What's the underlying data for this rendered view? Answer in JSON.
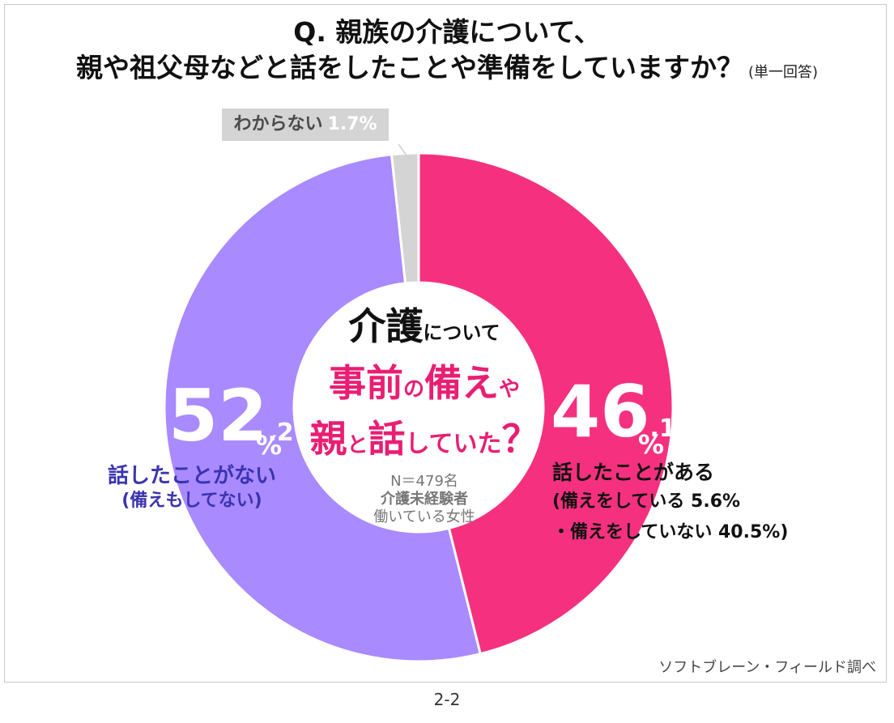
{
  "title": {
    "line1": "Q.  親族の介護について、",
    "line2": "親や祖父母などと話をしたことや準備をしていますか？",
    "note": "(単一回答)"
  },
  "center": {
    "line1_big1": "介",
    "line1_big2": "護",
    "line1_small": "について",
    "line2a_big": "事前",
    "line2a_small1": "の",
    "line2a_big2": "備え",
    "line2a_small2": "や",
    "line2b_big": "親",
    "line2b_small1": "と",
    "line2b_big2": "話",
    "line2b_small2": "していた",
    "line2b_big3": "？",
    "sample_n": "N＝479名",
    "sample_a": "介護未経験者",
    "sample_b": "働いている女性"
  },
  "labels": {
    "unknown_text": "わからない",
    "unknown_pct": "1.7%",
    "no_int": "52",
    "no_dec": ".2",
    "no_unit": "%",
    "no_main": "話したことがない",
    "no_sub": "(備えもしてない)",
    "yes_int": "46",
    "yes_dec": ".1",
    "yes_unit": "%",
    "yes_main": "話したことがある",
    "yes_sub1": "(備えをしている  5.6%",
    "yes_sub2": "・備えをしていない  40.5%)"
  },
  "source": "ソフトブレーン・フィールド調べ",
  "page_number": "2-2",
  "colors": {
    "yes": "#f5317f",
    "no": "#a98aff",
    "unknown": "#d4d4d4",
    "center_accent": "#e91e73",
    "no_label": "#3b34b0"
  },
  "chart_data": {
    "type": "pie",
    "donut": true,
    "title": "Q.  親族の介護について、親や祖父母などと話をしたことや準備をしていますか？",
    "categories": [
      "話したことがある",
      "話したことがない",
      "わからない"
    ],
    "values": [
      46.1,
      52.2,
      1.7
    ],
    "sub_breakdown": {
      "話したことがある": [
        {
          "name": "備えをしている",
          "value": 5.6
        },
        {
          "name": "備えをしていない",
          "value": 40.5
        }
      ]
    },
    "start": "top",
    "direction": "clockwise"
  }
}
